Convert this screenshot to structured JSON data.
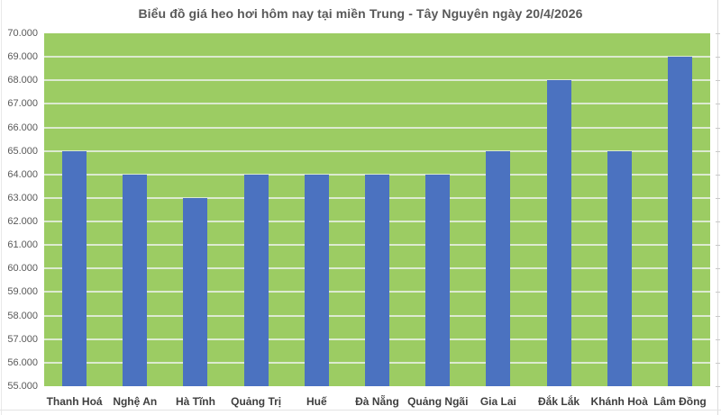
{
  "title": "Biểu đồ giá heo hơi hôm nay tại miền Trung - Tây Nguyên ngày 20/4/2026",
  "chart_data": {
    "type": "bar",
    "title": "Biểu đồ giá heo hơi hôm nay tại miền Trung - Tây Nguyên ngày 20/4/2026",
    "categories": [
      "Thanh Hoá",
      "Nghệ An",
      "Hà Tĩnh",
      "Quảng Trị",
      "Huế",
      "Đà Nẵng",
      "Quảng Ngãi",
      "Gia Lai",
      "Đắk Lắk",
      "Khánh Hoà",
      "Lâm Đồng"
    ],
    "values": [
      65000,
      64000,
      63000,
      64000,
      64000,
      64000,
      64000,
      65000,
      68000,
      65000,
      69000
    ],
    "xlabel": "",
    "ylabel": "",
    "ylim": [
      55000,
      70000
    ],
    "y_ticks": [
      55000,
      56000,
      57000,
      58000,
      59000,
      60000,
      61000,
      62000,
      63000,
      64000,
      65000,
      66000,
      67000,
      68000,
      69000,
      70000
    ],
    "y_tick_labels": [
      "55.000",
      "56.000",
      "57.000",
      "58.000",
      "59.000",
      "60.000",
      "61.000",
      "62.000",
      "63.000",
      "64.000",
      "65.000",
      "66.000",
      "67.000",
      "68.000",
      "69.000",
      "70.000"
    ],
    "grid": true,
    "legend": false
  },
  "colors": {
    "bar": "#4b72c0",
    "plot_background": "#9ccc63",
    "gridline": "#dcead0",
    "title_text": "#595959",
    "y_tick_text": "#595959",
    "x_tick_text": "#3f3f3f"
  }
}
